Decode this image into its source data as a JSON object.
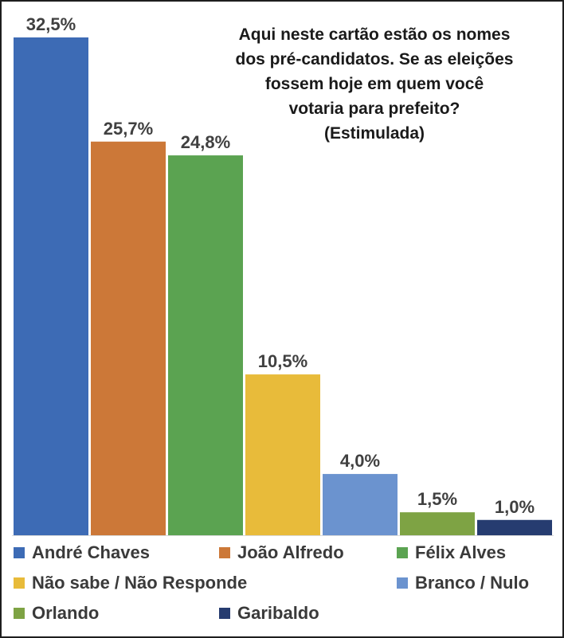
{
  "title_lines": [
    "Aqui neste cartão estão os nomes",
    "dos pré-candidatos. Se as eleições",
    "fossem hoje em quem você",
    "votaria para prefeito?",
    "(Estimulada)"
  ],
  "chart_data": {
    "type": "bar",
    "categories": [
      "André Chaves",
      "João Alfredo",
      "Félix Alves",
      "Não sabe / Não Responde",
      "Branco / Nulo",
      "Orlando",
      "Garibaldo"
    ],
    "values": [
      32.5,
      25.7,
      24.8,
      10.5,
      4.0,
      1.5,
      1.0
    ],
    "value_labels": [
      "32,5%",
      "25,7%",
      "24,8%",
      "10,5%",
      "4,0%",
      "1,5%",
      "1,0%"
    ],
    "colors": [
      "#3d6bb5",
      "#cc7838",
      "#5ba351",
      "#e8bb3a",
      "#6b93cf",
      "#7ea344",
      "#263c70"
    ],
    "ylim": [
      0,
      32.5
    ],
    "grid": false,
    "legend_position": "bottom"
  }
}
